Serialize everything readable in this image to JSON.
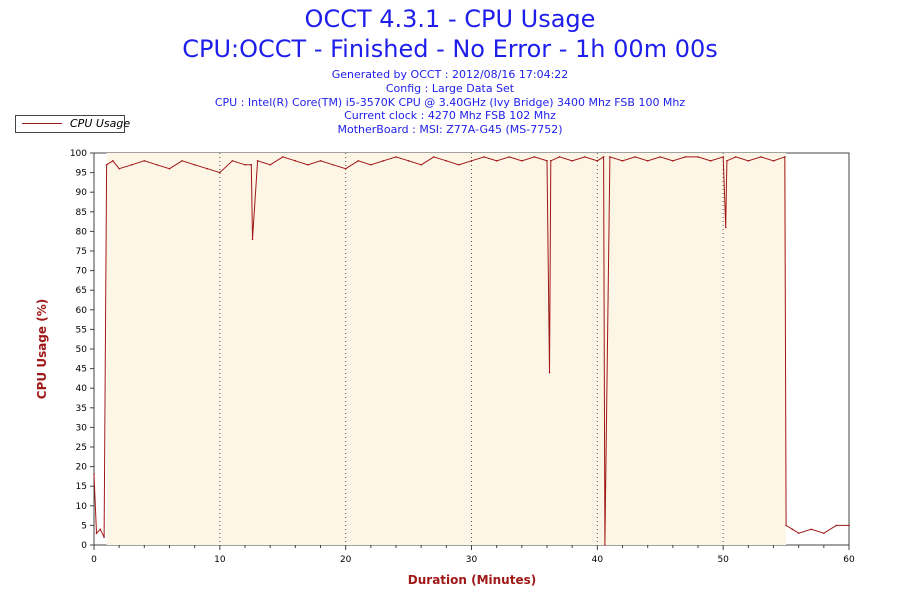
{
  "header": {
    "title": "OCCT 4.3.1 - CPU Usage",
    "subtitle": "CPU:OCCT - Finished - No Error - 1h 00m 00s",
    "generated": "Generated by OCCT : 2012/08/16 17:04:22",
    "config": "Config : Large Data Set",
    "cpu": "CPU : Intel(R) Core(TM) i5-3570K CPU @ 3.40GHz (Ivy Bridge) 3400 Mhz FSB 100 Mhz",
    "clock": "Current clock : 4270 Mhz FSB 102 Mhz",
    "motherboard": "MotherBoard : MSI: Z77A-G45 (MS-7752)"
  },
  "colors": {
    "series": "#a01818",
    "plot_background": "#fdf5e6",
    "title": "#1e1eeb",
    "axis_label": "#a01818"
  },
  "chart_data": {
    "type": "line",
    "title": "OCCT 4.3.1 - CPU Usage",
    "xlabel": "Duration (Minutes)",
    "ylabel": "CPU Usage (%)",
    "xlim": [
      0,
      60
    ],
    "ylim": [
      0,
      100
    ],
    "x_ticks": [
      0,
      10,
      20,
      30,
      40,
      50,
      60
    ],
    "y_ticks": [
      0,
      5,
      10,
      15,
      20,
      25,
      30,
      35,
      40,
      45,
      50,
      55,
      60,
      65,
      70,
      75,
      80,
      85,
      90,
      95,
      100
    ],
    "grid": "vertical dotted at every 10 minutes",
    "legend": "top-left, outside plot",
    "shaded_region_x": [
      1,
      55
    ],
    "series": [
      {
        "name": "CPU Usage",
        "x": [
          0,
          0.2,
          0.5,
          0.8,
          1.0,
          1.5,
          2,
          3,
          4,
          5,
          6,
          7,
          8,
          9,
          10,
          11,
          12,
          12.5,
          12.6,
          13,
          14,
          15,
          16,
          17,
          18,
          19,
          20,
          21,
          22,
          23,
          24,
          25,
          26,
          27,
          28,
          29,
          30,
          31,
          32,
          33,
          34,
          35,
          36,
          36.2,
          36.3,
          37,
          38,
          39,
          40,
          40.5,
          40.6,
          41,
          42,
          43,
          44,
          45,
          46,
          47,
          48,
          49,
          50,
          50.2,
          50.3,
          51,
          52,
          53,
          54,
          54.9,
          55,
          55.5,
          56,
          57,
          58,
          59,
          60
        ],
        "values": [
          18,
          3,
          4,
          2,
          97,
          98,
          96,
          97,
          98,
          97,
          96,
          98,
          97,
          96,
          95,
          98,
          97,
          97,
          78,
          98,
          97,
          99,
          98,
          97,
          98,
          97,
          96,
          98,
          97,
          98,
          99,
          98,
          97,
          99,
          98,
          97,
          98,
          99,
          98,
          99,
          98,
          99,
          98,
          44,
          98,
          99,
          98,
          99,
          98,
          99,
          0,
          99,
          98,
          99,
          98,
          99,
          98,
          99,
          99,
          98,
          99,
          81,
          98,
          99,
          98,
          99,
          98,
          99,
          5,
          4,
          3,
          4,
          3,
          5,
          5
        ]
      }
    ]
  }
}
